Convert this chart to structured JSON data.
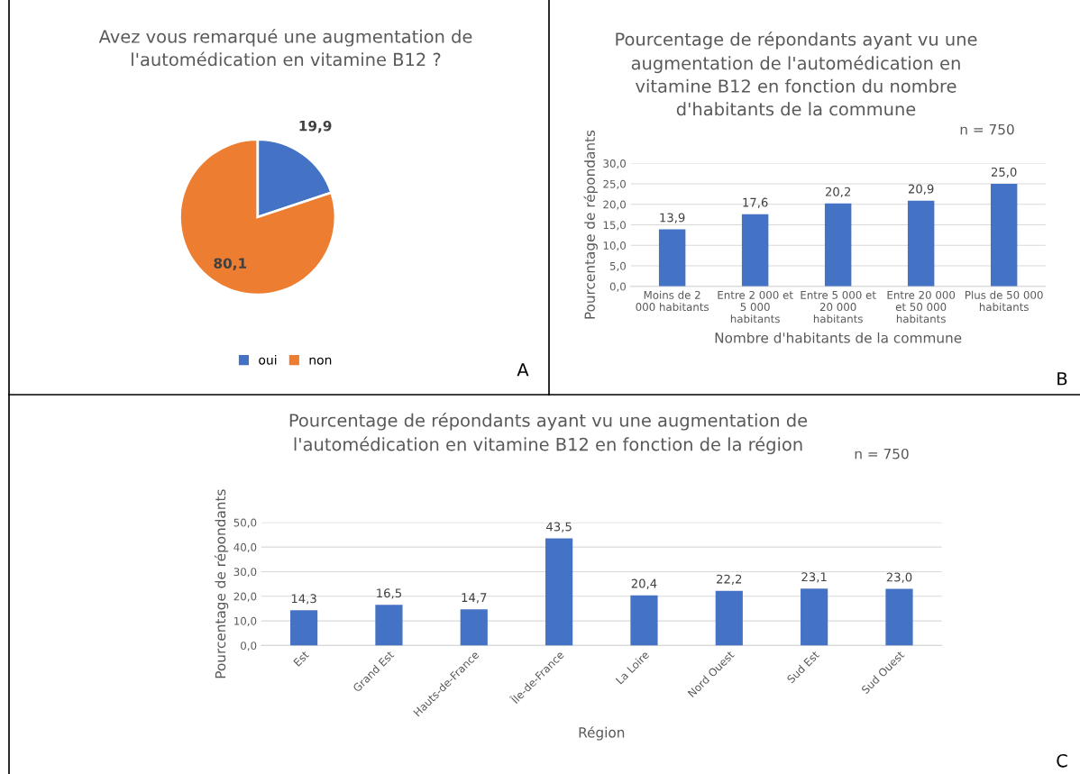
{
  "chart_data": [
    {
      "type": "pie",
      "title": "Avez vous remarqué une augmentation de\nl'automédication en vitamine B12 ?",
      "categories": [
        "oui",
        "non"
      ],
      "values": [
        19.9,
        80.1
      ],
      "colors": [
        "#4472c4",
        "#ed7d31"
      ],
      "value_labels": [
        "19,9",
        "80,1"
      ],
      "legend": "bottom",
      "annotations": [
        "A"
      ]
    },
    {
      "type": "bar",
      "title": "Pourcentage de répondants ayant vu une\naugmentation de l'automédication en\nvitamine B12 en fonction du nombre\nd'habitants de la commune",
      "xlabel": "Nombre d'habitants de la commune",
      "ylabel": "Pourcentage de répondants",
      "categories": [
        "Moins de 2\n000 habitants",
        "Entre 2 000 et\n5 000\nhabitants",
        "Entre 5 000 et\n20 000\nhabitants",
        "Entre 20 000\net 50 000\nhabitants",
        "Plus de 50 000\nhabitants"
      ],
      "values": [
        13.9,
        17.6,
        20.2,
        20.9,
        25.0
      ],
      "color": "#4472c4",
      "value_labels": [
        "13,9",
        "17,6",
        "20,2",
        "20,9",
        "25,0"
      ],
      "ylim": [
        0,
        30
      ],
      "yticks": [
        {
          "value": 0,
          "label": "0,0"
        },
        {
          "value": 5,
          "label": "5,0"
        },
        {
          "value": 10,
          "label": "10,0"
        },
        {
          "value": 15,
          "label": "15,0"
        },
        {
          "value": 20,
          "label": "20,0"
        },
        {
          "value": 25,
          "label": "25,0"
        },
        {
          "value": 30,
          "label": "30,0"
        }
      ],
      "grid": "y",
      "legend": false,
      "annotations": [
        "n = 750",
        "B"
      ]
    },
    {
      "type": "bar",
      "title": "Pourcentage de répondants ayant vu une augmentation de\nl'automédication en vitamine B12 en fonction de la région",
      "xlabel": "Région",
      "ylabel": "Pourcentage de répondants",
      "categories": [
        "Est",
        "Grand Est",
        "Hauts-de-France",
        "Île-de-France",
        "La Loire",
        "Nord Ouest",
        "Sud Est",
        "Sud Ouest"
      ],
      "values": [
        14.3,
        16.5,
        14.7,
        43.5,
        20.4,
        22.2,
        23.1,
        23.0
      ],
      "color": "#4472c4",
      "value_labels": [
        "14,3",
        "16,5",
        "14,7",
        "43,5",
        "20,4",
        "22,2",
        "23,1",
        "23,0"
      ],
      "ylim": [
        0,
        50
      ],
      "yticks": [
        {
          "value": 0,
          "label": "0,0"
        },
        {
          "value": 10,
          "label": "10,0"
        },
        {
          "value": 20,
          "label": "20,0"
        },
        {
          "value": 30,
          "label": "30,0"
        },
        {
          "value": 40,
          "label": "40,0"
        },
        {
          "value": 50,
          "label": "50,0"
        }
      ],
      "grid": "y",
      "legend": false,
      "annotations": [
        "n = 750",
        "C"
      ]
    }
  ]
}
